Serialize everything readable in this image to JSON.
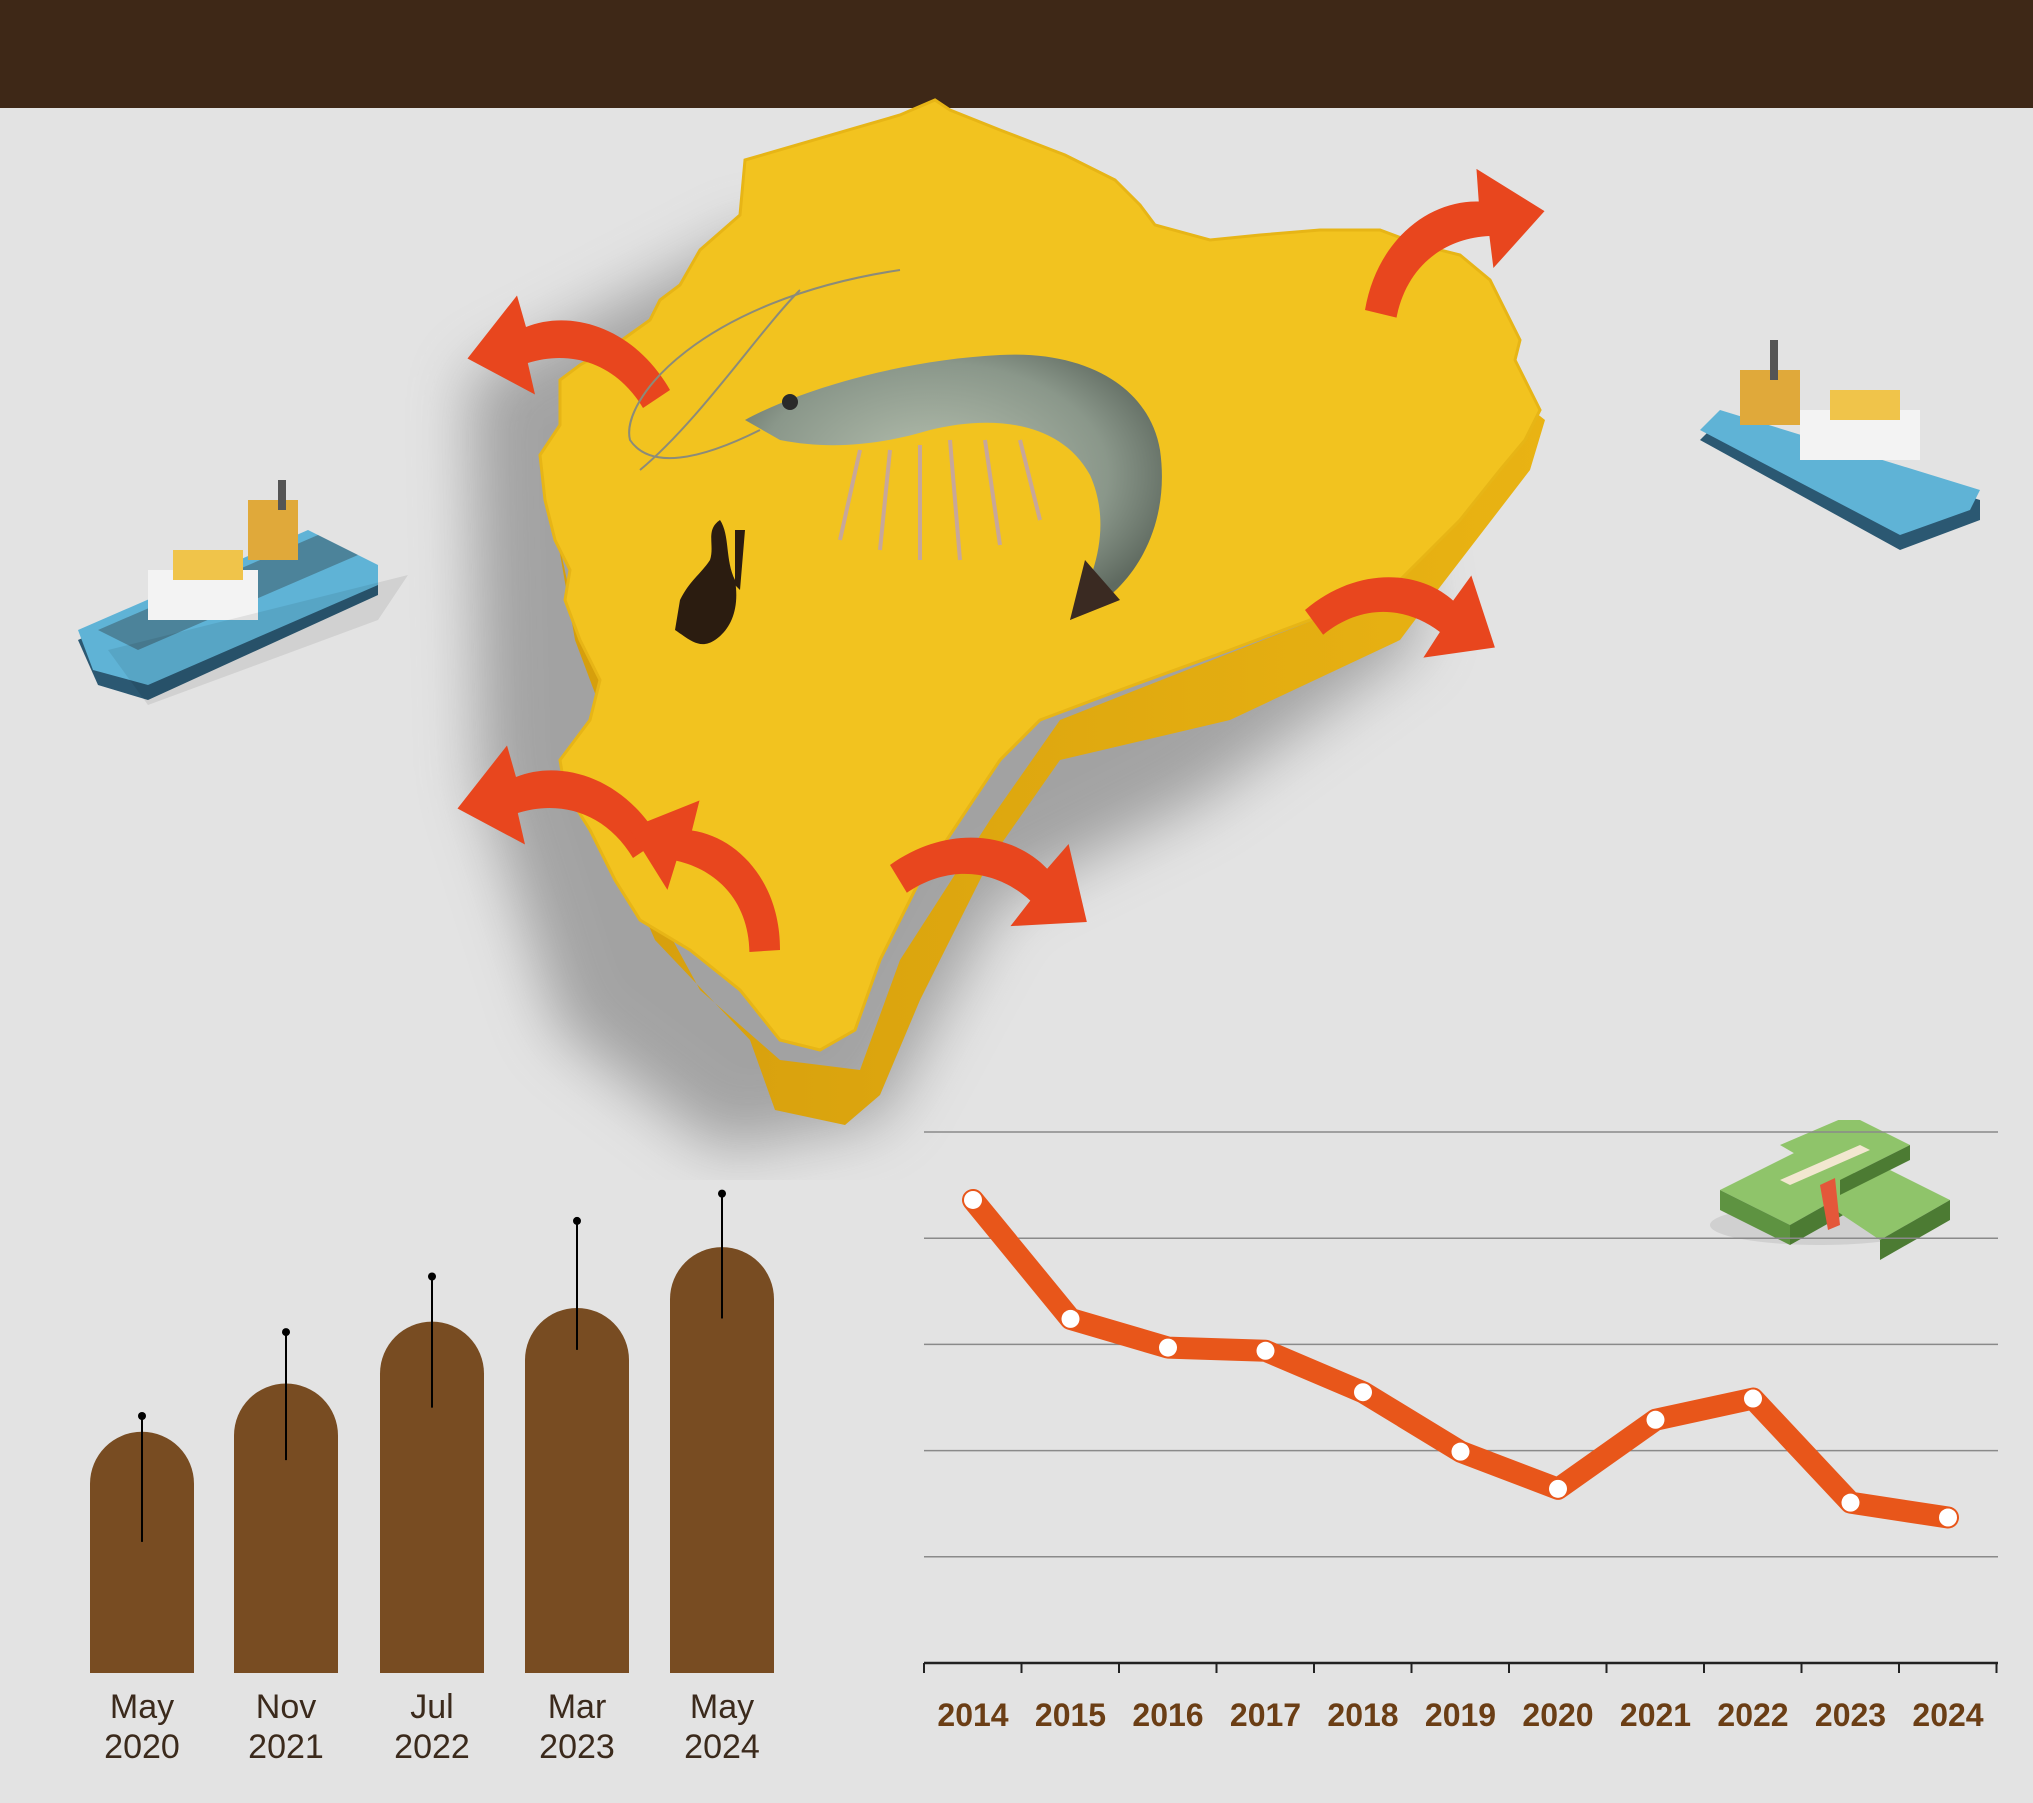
{
  "colors": {
    "header": "#3e2817",
    "background": "#e3e3e3",
    "map": "#f2c31f",
    "arrow": "#e8461e",
    "bar": "#784c22",
    "line": "#e8561a"
  },
  "icons": [
    "ecuador-map-icon",
    "shrimp-icon",
    "cargo-ship-icon",
    "money-stack-icon",
    "export-arrow-icon"
  ],
  "chart_data": [
    {
      "type": "bar",
      "title": "",
      "xlabel": "",
      "ylabel": "",
      "categories": [
        {
          "month": "May",
          "year": "2020"
        },
        {
          "month": "Nov",
          "year": "2021"
        },
        {
          "month": "Jul",
          "year": "2022"
        },
        {
          "month": "Mar",
          "year": "2023"
        },
        {
          "month": "May",
          "year": "2024"
        }
      ],
      "values": [
        230,
        276,
        335,
        348,
        406
      ],
      "error_bars": [
        {
          "low": 125,
          "high": 245
        },
        {
          "low": 203,
          "high": 325
        },
        {
          "low": 253,
          "high": 378
        },
        {
          "low": 308,
          "high": 431
        },
        {
          "low": 338,
          "high": 457
        }
      ],
      "ylim": [
        0,
        470
      ],
      "yaxis_visible": false
    },
    {
      "type": "line",
      "title": "",
      "xlabel": "",
      "ylabel": "",
      "x": [
        "2014",
        "2015",
        "2016",
        "2017",
        "2018",
        "2019",
        "2020",
        "2021",
        "2022",
        "2023",
        "2024"
      ],
      "values": [
        4.36,
        3.24,
        2.97,
        2.94,
        2.55,
        1.99,
        1.64,
        2.29,
        2.49,
        1.51,
        1.37
      ],
      "ylim": [
        0,
        5
      ],
      "gridlines_y": [
        1,
        2,
        3,
        4,
        5
      ],
      "grid": true,
      "tick_labels_y_visible": false
    }
  ]
}
